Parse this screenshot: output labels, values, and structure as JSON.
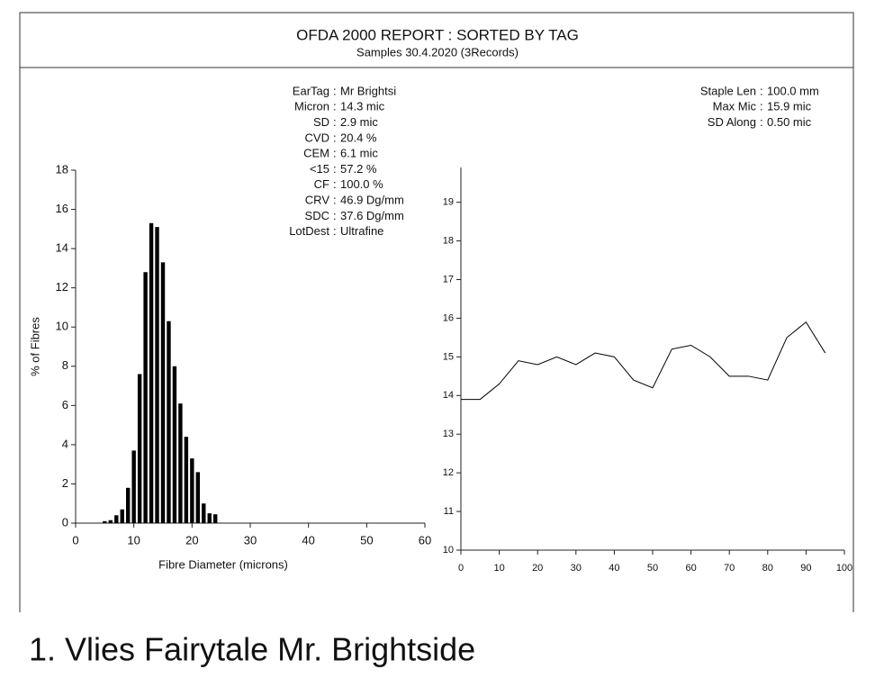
{
  "header": {
    "title": "OFDA 2000 REPORT : SORTED BY TAG",
    "subtitle": "Samples 30.4.2020 (3Records)"
  },
  "stats_left": [
    [
      "EarTag",
      "Mr Brightsi"
    ],
    [
      "Micron",
      "14.3 mic"
    ],
    [
      "SD",
      "2.9 mic"
    ],
    [
      "CVD",
      "20.4 %"
    ],
    [
      "CEM",
      "6.1 mic"
    ],
    [
      "<15",
      "57.2 %"
    ],
    [
      "CF",
      "100.0 %"
    ],
    [
      "CRV",
      "46.9 Dg/mm"
    ],
    [
      "SDC",
      "37.6 Dg/mm"
    ],
    [
      "LotDest",
      "Ultrafine"
    ]
  ],
  "stats_right": [
    [
      "Staple Len",
      "100.0 mm"
    ],
    [
      "Max Mic",
      "15.9 mic"
    ],
    [
      "SD Along",
      "0.50 mic"
    ]
  ],
  "caption": "1. Vlies Fairytale Mr. Brightside",
  "chart_data": [
    {
      "type": "bar",
      "x_label": "Fibre Diameter (microns)",
      "y_label": "% of Fibres",
      "color": "#000000",
      "x": [
        5,
        6,
        7,
        8,
        9,
        10,
        11,
        12,
        13,
        14,
        15,
        16,
        17,
        18,
        19,
        20,
        21,
        22,
        23,
        24
      ],
      "values": [
        0.1,
        0.15,
        0.4,
        0.7,
        1.8,
        3.7,
        7.6,
        12.8,
        15.3,
        15.1,
        13.3,
        10.3,
        8.0,
        6.1,
        4.4,
        3.3,
        2.6,
        1.0,
        0.5,
        0.45
      ],
      "xlim": [
        0,
        60
      ],
      "xticks": [
        0,
        10,
        20,
        30,
        40,
        50,
        60
      ],
      "ylim": [
        0,
        18
      ],
      "yticks": [
        0,
        2,
        4,
        6,
        8,
        10,
        12,
        14,
        16,
        18
      ]
    },
    {
      "type": "line",
      "color": "#000000",
      "x": [
        0,
        5,
        10,
        15,
        20,
        25,
        30,
        35,
        40,
        45,
        50,
        55,
        60,
        65,
        70,
        75,
        80,
        85,
        90,
        95
      ],
      "values": [
        13.9,
        13.9,
        14.3,
        14.9,
        14.8,
        15.0,
        14.8,
        15.1,
        15.0,
        14.4,
        14.2,
        15.2,
        15.3,
        15.0,
        14.5,
        14.5,
        14.4,
        15.5,
        15.9,
        15.1
      ],
      "xlim": [
        0,
        100
      ],
      "xticks": [
        0,
        10,
        20,
        30,
        40,
        50,
        60,
        70,
        80,
        90,
        100
      ],
      "ylim": [
        10,
        19.9
      ],
      "yticks": [
        10,
        11,
        12,
        13,
        14,
        15,
        16,
        17,
        18,
        19
      ]
    }
  ]
}
